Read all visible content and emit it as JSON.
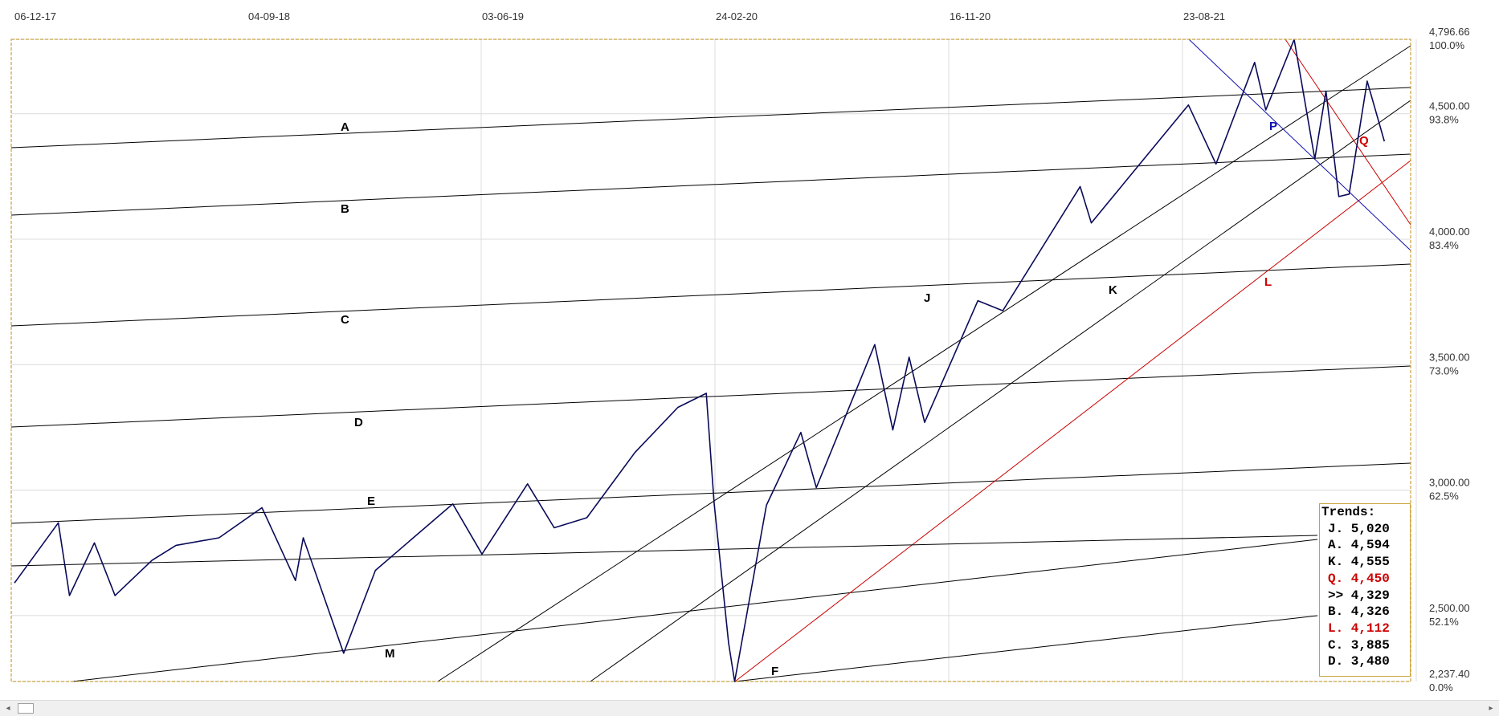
{
  "chart_data": {
    "type": "line",
    "x_dates": [
      "06-12-17",
      "04-09-18",
      "03-06-19",
      "24-02-20",
      "16-11-20",
      "23-08-21"
    ],
    "y_ticks": [
      {
        "value": 4796.66,
        "label": "4,796.66",
        "pct": "100.0%"
      },
      {
        "value": 4500,
        "label": "4,500.00",
        "pct": "93.8%"
      },
      {
        "value": 4000,
        "label": "4,000.00",
        "pct": "83.4%"
      },
      {
        "value": 3500,
        "label": "3,500.00",
        "pct": "73.0%"
      },
      {
        "value": 3000,
        "label": "3,000.00",
        "pct": "62.5%"
      },
      {
        "value": 2500,
        "label": "2,500.00",
        "pct": "52.1%"
      },
      {
        "value": 2237.4,
        "label": "2,237.40",
        "pct": "0.0%"
      }
    ],
    "ylim": [
      2237.4,
      4796.66
    ],
    "series": [
      {
        "color": "#0a0a5a",
        "points": [
          [
            "2017-12-06",
            2630
          ],
          [
            "2018-01-26",
            2870
          ],
          [
            "2018-02-08",
            2580
          ],
          [
            "2018-03-09",
            2790
          ],
          [
            "2018-04-02",
            2580
          ],
          [
            "2018-05-15",
            2720
          ],
          [
            "2018-06-12",
            2780
          ],
          [
            "2018-08-01",
            2810
          ],
          [
            "2018-09-20",
            2930
          ],
          [
            "2018-10-29",
            2640
          ],
          [
            "2018-11-07",
            2810
          ],
          [
            "2018-12-24",
            2350
          ],
          [
            "2019-01-30",
            2680
          ],
          [
            "2019-04-30",
            2945
          ],
          [
            "2019-06-03",
            2745
          ],
          [
            "2019-07-26",
            3025
          ],
          [
            "2019-08-26",
            2850
          ],
          [
            "2019-10-03",
            2890
          ],
          [
            "2019-11-28",
            3150
          ],
          [
            "2020-01-17",
            3330
          ],
          [
            "2020-02-19",
            3386
          ],
          [
            "2020-02-28",
            2950
          ],
          [
            "2020-03-16",
            2390
          ],
          [
            "2020-03-23",
            2237
          ],
          [
            "2020-04-29",
            2940
          ],
          [
            "2020-06-08",
            3230
          ],
          [
            "2020-06-26",
            3010
          ],
          [
            "2020-09-02",
            3580
          ],
          [
            "2020-09-23",
            3240
          ],
          [
            "2020-10-12",
            3530
          ],
          [
            "2020-10-30",
            3270
          ],
          [
            "2020-12-31",
            3755
          ],
          [
            "2021-01-29",
            3715
          ],
          [
            "2021-04-29",
            4210
          ],
          [
            "2021-05-12",
            4065
          ],
          [
            "2021-09-02",
            4535
          ],
          [
            "2021-10-04",
            4300
          ],
          [
            "2021-11-18",
            4705
          ],
          [
            "2021-12-01",
            4515
          ],
          [
            "2022-01-03",
            4796
          ],
          [
            "2022-01-27",
            4320
          ],
          [
            "2022-02-09",
            4590
          ],
          [
            "2022-02-24",
            4170
          ],
          [
            "2022-03-08",
            4180
          ],
          [
            "2022-03-29",
            4630
          ],
          [
            "2022-04-18",
            4390
          ]
        ]
      }
    ],
    "trend_lines": [
      {
        "label": "A"
      },
      {
        "label": "B"
      },
      {
        "label": "C"
      },
      {
        "label": "D"
      },
      {
        "label": "E"
      },
      {
        "label": "M"
      },
      {
        "label": "F"
      },
      {
        "label": "J"
      },
      {
        "label": "K"
      },
      {
        "label": "L",
        "color": "#cc0000"
      },
      {
        "label": "P",
        "color": "#1010b0"
      },
      {
        "label": "Q",
        "color": "#cc0000"
      }
    ],
    "legend": {
      "title": "Trends:",
      "entries": [
        {
          "name": "J.",
          "value": "5,020",
          "color": "#000000"
        },
        {
          "name": "A.",
          "value": "4,594",
          "color": "#000000"
        },
        {
          "name": "K.",
          "value": "4,555",
          "color": "#000000"
        },
        {
          "name": "Q.",
          "value": "4,450",
          "color": "#cc0000"
        },
        {
          "name": ">>",
          "value": "4,329",
          "color": "#000000"
        },
        {
          "name": "B.",
          "value": "4,326",
          "color": "#000000"
        },
        {
          "name": "L.",
          "value": "4,112",
          "color": "#cc0000"
        },
        {
          "name": "C.",
          "value": "3,885",
          "color": "#000000"
        },
        {
          "name": "D.",
          "value": "3,480",
          "color": "#000000"
        }
      ],
      "placement": "bottom-right"
    },
    "grid": true,
    "colors": {
      "price_line": "#0a0a5a",
      "frame": "#c8a23c",
      "grid": "#d8d8d8",
      "black_lines": "#000000",
      "red_lines": "#cc0000",
      "blue_lines": "#1010b0"
    }
  },
  "scrollbar": {
    "left_icon": "arrow-left-icon",
    "right_icon": "arrow-right-icon",
    "left_glyph": "◂",
    "right_glyph": "▸"
  }
}
